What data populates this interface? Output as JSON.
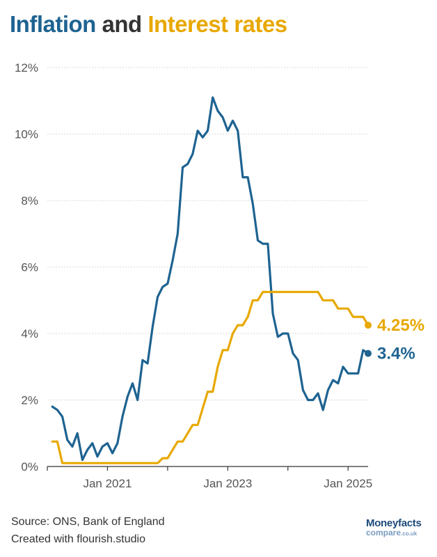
{
  "title": {
    "part1": "Inflation",
    "part2": " and ",
    "part3": "Interest rates",
    "color1": "#1e6391",
    "color2": "#333333",
    "color3": "#e8a800"
  },
  "footer": {
    "source": "Source: ONS, Bank of England",
    "credit": "Created with flourish.studio"
  },
  "logo": {
    "line1": "Moneyfacts",
    "line2a": "compare",
    "line2b": ".co.uk"
  },
  "chart_data": {
    "type": "line",
    "ylim": [
      0,
      12
    ],
    "y_ticks": [
      "0%",
      "2%",
      "4%",
      "6%",
      "8%",
      "10%",
      "12%"
    ],
    "x_ticks": [
      "Jan 2021",
      "Jan 2023",
      "Jan 2025"
    ],
    "grid": true,
    "series": [
      {
        "color": "#1e6391",
        "end_label": "3.4%",
        "x": [
          "2020-02",
          "2020-03",
          "2020-04",
          "2020-05",
          "2020-06",
          "2020-07",
          "2020-08",
          "2020-09",
          "2020-10",
          "2020-11",
          "2020-12",
          "2021-01",
          "2021-02",
          "2021-03",
          "2021-04",
          "2021-05",
          "2021-06",
          "2021-07",
          "2021-08",
          "2021-09",
          "2021-10",
          "2021-11",
          "2021-12",
          "2022-01",
          "2022-02",
          "2022-03",
          "2022-04",
          "2022-05",
          "2022-06",
          "2022-07",
          "2022-08",
          "2022-09",
          "2022-10",
          "2022-11",
          "2022-12",
          "2023-01",
          "2023-02",
          "2023-03",
          "2023-04",
          "2023-05",
          "2023-06",
          "2023-07",
          "2023-08",
          "2023-09",
          "2023-10",
          "2023-11",
          "2023-12",
          "2024-01",
          "2024-02",
          "2024-03",
          "2024-04",
          "2024-05",
          "2024-06",
          "2024-07",
          "2024-08",
          "2024-09",
          "2024-10",
          "2024-11",
          "2024-12",
          "2025-01",
          "2025-02",
          "2025-03",
          "2025-04",
          "2025-05"
        ],
        "values": [
          1.8,
          1.7,
          1.5,
          0.8,
          0.6,
          1.0,
          0.2,
          0.5,
          0.7,
          0.3,
          0.6,
          0.7,
          0.4,
          0.7,
          1.5,
          2.1,
          2.5,
          2.0,
          3.2,
          3.1,
          4.2,
          5.1,
          5.4,
          5.5,
          6.2,
          7.0,
          9.0,
          9.1,
          9.4,
          10.1,
          9.9,
          10.1,
          11.1,
          10.7,
          10.5,
          10.1,
          10.4,
          10.1,
          8.7,
          8.7,
          7.9,
          6.8,
          6.7,
          6.7,
          4.6,
          3.9,
          4.0,
          4.0,
          3.4,
          3.2,
          2.3,
          2.0,
          2.0,
          2.2,
          1.7,
          2.3,
          2.6,
          2.5,
          3.0,
          2.8,
          2.8,
          2.8,
          3.5,
          3.4
        ]
      },
      {
        "color": "#e8a800",
        "end_label": "4.25%",
        "x": [
          "2020-02",
          "2020-03",
          "2020-04",
          "2021-11",
          "2021-12",
          "2022-01",
          "2022-02",
          "2022-03",
          "2022-04",
          "2022-05",
          "2022-06",
          "2022-07",
          "2022-08",
          "2022-09",
          "2022-10",
          "2022-11",
          "2022-12",
          "2023-01",
          "2023-02",
          "2023-03",
          "2023-04",
          "2023-05",
          "2023-06",
          "2023-07",
          "2023-08",
          "2024-07",
          "2024-08",
          "2024-09",
          "2024-10",
          "2024-11",
          "2024-12",
          "2025-01",
          "2025-02",
          "2025-03",
          "2025-04",
          "2025-05"
        ],
        "values": [
          0.75,
          0.75,
          0.1,
          0.1,
          0.25,
          0.25,
          0.5,
          0.75,
          0.75,
          1.0,
          1.25,
          1.25,
          1.75,
          2.25,
          2.25,
          3.0,
          3.5,
          3.5,
          4.0,
          4.25,
          4.25,
          4.5,
          5.0,
          5.0,
          5.25,
          5.25,
          5.0,
          5.0,
          5.0,
          4.75,
          4.75,
          4.75,
          4.5,
          4.5,
          4.5,
          4.25
        ]
      }
    ]
  }
}
